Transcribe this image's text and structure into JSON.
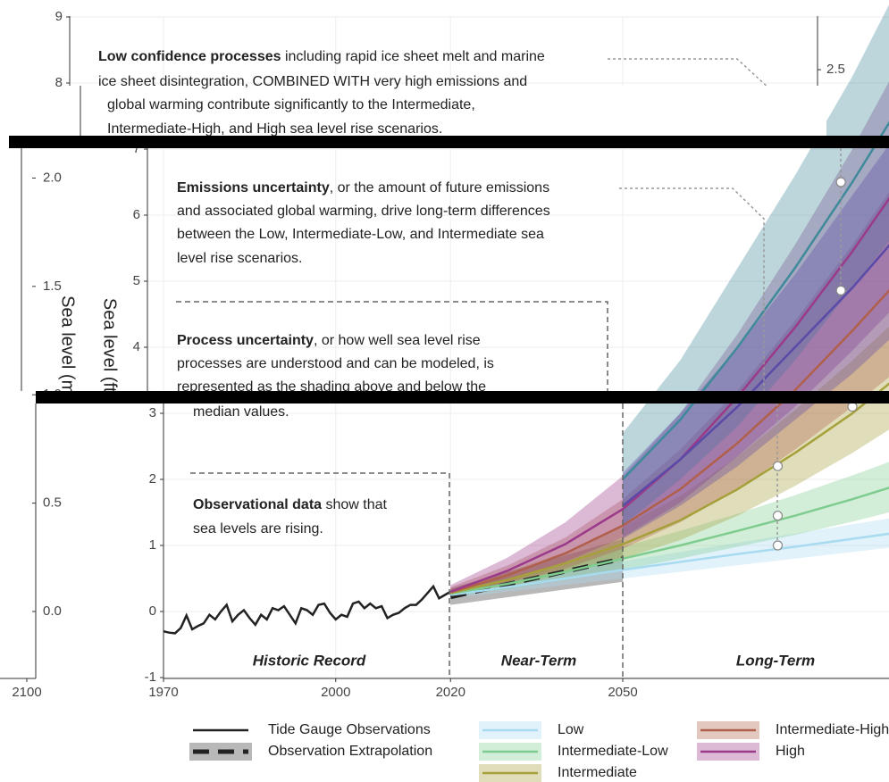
{
  "chart_data": {
    "type": "line",
    "ylabel": "Sea level (ft)",
    "y2label": "Sea level (m)",
    "xlim": [
      1970,
      2100
    ],
    "ylim": [
      -1,
      9
    ],
    "xticks": [
      1970,
      2000,
      2020,
      2050,
      2100
    ],
    "yticks": [
      -1,
      0,
      1,
      2,
      3,
      4,
      5,
      6,
      7,
      8,
      9
    ],
    "y2lim": [
      -0.3048,
      2.7432
    ],
    "y2ticks": [
      {
        "value": 0,
        "label": "0.0"
      },
      {
        "value": 0.5,
        "label": "0.5"
      },
      {
        "value": 1,
        "label": "1.0"
      },
      {
        "value": 1.5,
        "label": "1.5"
      },
      {
        "value": 2,
        "label": "2.0"
      },
      {
        "value": 2.5,
        "label": "2.5"
      }
    ],
    "grid": true,
    "periods": [
      "Historic Record",
      "Near-Term",
      "Long-Term"
    ],
    "annotations": [
      {
        "lines": [
          {
            "bold": "Low confidence processes",
            "text": " including rapid ice sheet melt and marine"
          },
          {
            "text": "ice sheet disintegration, COMBINED WITH very high emissions and"
          },
          {
            "text": "global warming contribute significantly to the Intermediate,"
          },
          {
            "text": "Intermediate-High, and High sea level rise scenarios."
          }
        ]
      },
      {
        "lines": [
          {
            "bold": "Emissions uncertainty",
            "text": ", or the amount of future emissions"
          },
          {
            "text": "and associated global warming, drive long-term differences"
          },
          {
            "text": "between the Low, Intermediate-Low, and Intermediate sea"
          },
          {
            "text": "level rise scenarios."
          }
        ]
      },
      {
        "lines": [
          {
            "bold": "Process uncertainty",
            "text": ", or how well sea level rise"
          },
          {
            "text": "processes are understood and can be modeled, is"
          },
          {
            "text": "represented as the shading above and below the"
          },
          {
            "text": "median values."
          }
        ]
      },
      {
        "lines": [
          {
            "bold": "Observational data",
            "text": " show that"
          },
          {
            "text": "sea levels are rising."
          }
        ]
      }
    ],
    "series": [
      {
        "name": "Tide Gauge Observations",
        "color": "#222222",
        "x": [
          1970,
          1971,
          1972,
          1973,
          1974,
          1975,
          1976,
          1977,
          1978,
          1979,
          1980,
          1981,
          1982,
          1983,
          1984,
          1985,
          1986,
          1987,
          1988,
          1989,
          1990,
          1991,
          1992,
          1993,
          1994,
          1995,
          1996,
          1997,
          1998,
          1999,
          2000,
          2001,
          2002,
          2003,
          2004,
          2005,
          2006,
          2007,
          2008,
          2009,
          2010,
          2011,
          2012,
          2013,
          2014,
          2015,
          2016,
          2017,
          2018,
          2019,
          2020
        ],
        "values": [
          -0.3,
          -0.32,
          -0.33,
          -0.25,
          -0.06,
          -0.27,
          -0.22,
          -0.18,
          -0.05,
          -0.12,
          0.0,
          0.1,
          -0.15,
          -0.05,
          0.02,
          -0.1,
          -0.2,
          -0.05,
          -0.12,
          0.05,
          0.02,
          0.08,
          -0.05,
          -0.18,
          0.05,
          0.02,
          -0.05,
          0.1,
          0.12,
          -0.02,
          -0.12,
          -0.05,
          -0.08,
          0.12,
          0.15,
          0.05,
          0.12,
          0.05,
          0.08,
          -0.1,
          -0.05,
          -0.02,
          0.05,
          0.1,
          0.1,
          0.18,
          0.28,
          0.38,
          0.2,
          0.25,
          0.3
        ]
      },
      {
        "name": "Observation Extrapolation",
        "color": "#222222",
        "dashed": true,
        "x": [
          2020,
          2050
        ],
        "values": [
          0.22,
          0.8
        ],
        "lower": [
          0.1,
          0.45
        ],
        "upper": [
          0.35,
          1.1
        ],
        "band": "#888888"
      },
      {
        "name": "Low",
        "color": "#a8dbf0",
        "x": [
          2020,
          2030,
          2040,
          2050,
          2060,
          2070,
          2080,
          2090,
          2100
        ],
        "values": [
          0.25,
          0.37,
          0.5,
          0.63,
          0.75,
          0.87,
          0.98,
          1.1,
          1.22
        ],
        "lower": [
          0.2,
          0.3,
          0.4,
          0.5,
          0.6,
          0.7,
          0.8,
          0.9,
          1.0
        ],
        "upper": [
          0.3,
          0.45,
          0.6,
          0.76,
          0.9,
          1.04,
          1.18,
          1.32,
          1.46
        ]
      },
      {
        "name": "Intermediate-Low",
        "color": "#7fcc8f",
        "x": [
          2020,
          2030,
          2040,
          2050,
          2060,
          2070,
          2080,
          2090,
          2100
        ],
        "values": [
          0.27,
          0.42,
          0.6,
          0.8,
          1.0,
          1.22,
          1.45,
          1.7,
          1.97
        ],
        "lower": [
          0.22,
          0.34,
          0.48,
          0.63,
          0.8,
          0.98,
          1.16,
          1.36,
          1.58
        ],
        "upper": [
          0.33,
          0.52,
          0.74,
          0.98,
          1.22,
          1.48,
          1.76,
          2.06,
          2.38
        ]
      },
      {
        "name": "Intermediate",
        "color": "#a6a03a",
        "x": [
          2020,
          2030,
          2040,
          2050,
          2060,
          2070,
          2080,
          2090,
          2100
        ],
        "values": [
          0.28,
          0.48,
          0.73,
          1.02,
          1.38,
          1.85,
          2.4,
          3.0,
          3.7
        ],
        "lower": [
          0.22,
          0.38,
          0.58,
          0.8,
          1.08,
          1.45,
          1.9,
          2.4,
          2.95
        ],
        "upper": [
          0.34,
          0.6,
          0.9,
          1.28,
          1.75,
          2.35,
          3.05,
          3.8,
          4.6
        ]
      },
      {
        "name": "Intermediate-High",
        "color": "#b0604a",
        "x": [
          2020,
          2030,
          2040,
          2050,
          2060,
          2070,
          2080,
          2090,
          2100
        ],
        "values": [
          0.29,
          0.55,
          0.88,
          1.3,
          1.85,
          2.55,
          3.35,
          4.25,
          5.2
        ],
        "lower": [
          0.22,
          0.42,
          0.65,
          0.95,
          1.35,
          1.85,
          2.45,
          3.1,
          3.8
        ],
        "upper": [
          0.37,
          0.7,
          1.12,
          1.7,
          2.45,
          3.35,
          4.4,
          5.55,
          6.8
        ]
      },
      {
        "name": "High",
        "color": "#9b3a8a",
        "x": [
          2020,
          2030,
          2040,
          2050,
          2060,
          2070,
          2080,
          2090,
          2100
        ],
        "values": [
          0.3,
          0.62,
          1.02,
          1.55,
          2.3,
          3.25,
          4.3,
          5.45,
          6.7
        ],
        "lower": [
          0.22,
          0.45,
          0.75,
          1.12,
          1.65,
          2.35,
          3.1,
          3.95,
          4.85
        ],
        "upper": [
          0.4,
          0.82,
          1.35,
          2.05,
          3.0,
          4.2,
          5.55,
          7.0,
          8.6
        ]
      },
      {
        "color": "#3f8a9a",
        "x": [
          2050,
          2060,
          2070,
          2080,
          2090,
          2100
        ],
        "values": [
          2.0,
          2.9,
          4.0,
          5.2,
          6.5,
          7.9
        ],
        "lower": [
          1.3,
          2.0,
          2.8,
          3.8,
          4.9,
          6.0
        ],
        "upper": [
          2.7,
          3.8,
          5.2,
          6.6,
          8.1,
          9.8
        ]
      },
      {
        "color": "#5b4aa8",
        "x": [
          2050,
          2060,
          2070,
          2080,
          2090,
          2100
        ],
        "values": [
          1.6,
          2.3,
          3.1,
          4.0,
          4.9,
          5.9
        ],
        "lower": [
          1.1,
          1.6,
          2.2,
          2.9,
          3.6,
          4.4
        ],
        "upper": [
          2.1,
          3.0,
          4.0,
          5.1,
          6.3,
          7.5
        ]
      }
    ],
    "markers": {
      "x": [
        2077,
        2077,
        2077,
        2090,
        2088,
        2088
      ],
      "y": [
        1.0,
        1.45,
        2.2,
        3.1,
        6.5,
        4.86
      ]
    }
  }
}
